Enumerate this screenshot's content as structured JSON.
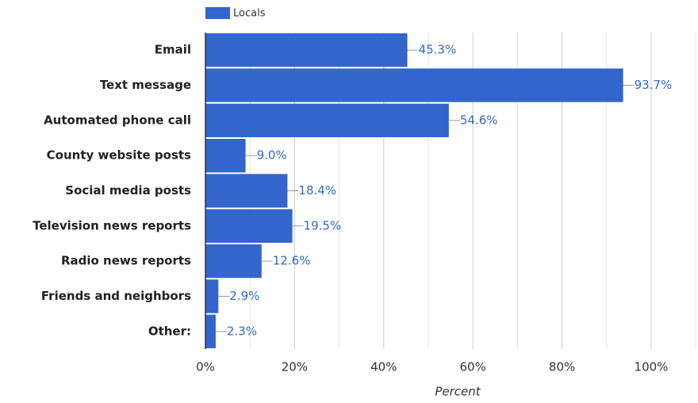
{
  "chart_data": {
    "type": "bar",
    "orientation": "horizontal",
    "x_label": "Percent",
    "categories": [
      "Email",
      "Text message",
      "Automated phone call",
      "County website posts",
      "Social media posts",
      "Television news reports",
      "Radio news reports",
      "Friends and neighbors",
      "Other:"
    ],
    "series": [
      {
        "name": "Locals",
        "color": "#3366cc",
        "values": [
          45.3,
          93.7,
          54.6,
          9.0,
          18.4,
          19.5,
          12.6,
          2.9,
          2.3
        ],
        "value_labels": [
          "45.3%",
          "93.7%",
          "54.6%",
          "9.0%",
          "18.4%",
          "19.5%",
          "12.6%",
          "2.9%",
          "2.3%"
        ]
      }
    ],
    "xlim": [
      0,
      110
    ],
    "xticks": [
      {
        "value": 0,
        "label": "0%"
      },
      {
        "value": 20,
        "label": "20%"
      },
      {
        "value": 40,
        "label": "40%"
      },
      {
        "value": 60,
        "label": "60%"
      },
      {
        "value": 80,
        "label": "80%"
      },
      {
        "value": 100,
        "label": "100%"
      }
    ],
    "minor_xticks": [
      10,
      30,
      50,
      70,
      90,
      110
    ],
    "grid": true,
    "legend": "top"
  }
}
